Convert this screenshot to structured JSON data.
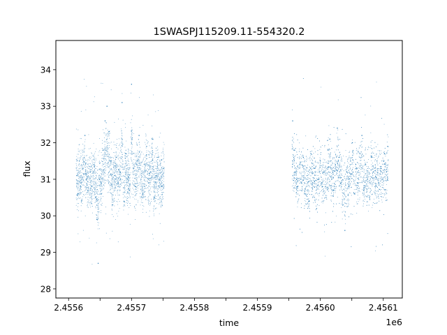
{
  "chart_data": {
    "type": "scatter",
    "title": "1SWASPJ115209.11-554320.2",
    "xlabel": "time",
    "ylabel": "flux",
    "x_offset_label": "1e6",
    "xlim": [
      2455579.8,
      2456130.2
    ],
    "ylim": [
      27.75,
      34.8
    ],
    "x_ticks": [
      2455600,
      2455650,
      2455700,
      2455750,
      2455800,
      2455850,
      2455900,
      2455950,
      2456000,
      2456050,
      2456100
    ],
    "x_tick_labels": [
      "2.4556",
      "",
      "2.4557",
      "",
      "2.4558",
      "",
      "2.4559",
      "",
      "2.4560",
      "",
      "2.4561"
    ],
    "y_ticks": [
      28,
      29,
      30,
      31,
      32,
      33,
      34
    ],
    "y_tick_labels": [
      "28",
      "29",
      "30",
      "31",
      "32",
      "33",
      "34"
    ],
    "grid": false,
    "marker_color": "#1f77b4",
    "segments": [
      {
        "x_start": 2455612,
        "x_end": 2455752,
        "points": [
          [
            2455613,
            31.1
          ],
          [
            2455615,
            30.6
          ],
          [
            2455617,
            31.5
          ],
          [
            2455620,
            30.9
          ],
          [
            2455623,
            31.3
          ],
          [
            2455626,
            32.2
          ],
          [
            2455628,
            31.0
          ],
          [
            2455631,
            30.7
          ],
          [
            2455634,
            31.2
          ],
          [
            2455637,
            30.8
          ],
          [
            2455640,
            31.4
          ],
          [
            2455643,
            30.5
          ],
          [
            2455645,
            29.9
          ],
          [
            2455647,
            28.7
          ],
          [
            2455649,
            31.0
          ],
          [
            2455652,
            30.6
          ],
          [
            2455655,
            31.8
          ],
          [
            2455658,
            32.6
          ],
          [
            2455661,
            33.0
          ],
          [
            2455664,
            32.3
          ],
          [
            2455667,
            31.5
          ],
          [
            2455670,
            30.3
          ],
          [
            2455673,
            31.1
          ],
          [
            2455676,
            31.6
          ],
          [
            2455679,
            30.9
          ],
          [
            2455682,
            31.2
          ],
          [
            2455685,
            33.1
          ],
          [
            2455688,
            30.4
          ],
          [
            2455691,
            31.7
          ],
          [
            2455694,
            31.0
          ],
          [
            2455697,
            30.7
          ],
          [
            2455700,
            33.6
          ],
          [
            2455703,
            31.3
          ],
          [
            2455706,
            30.8
          ],
          [
            2455709,
            31.5
          ],
          [
            2455712,
            32.2
          ],
          [
            2455715,
            31.0
          ],
          [
            2455718,
            30.6
          ],
          [
            2455721,
            31.4
          ],
          [
            2455724,
            31.9
          ],
          [
            2455727,
            30.9
          ],
          [
            2455730,
            31.2
          ],
          [
            2455733,
            32.1
          ],
          [
            2455736,
            30.5
          ],
          [
            2455739,
            31.1
          ],
          [
            2455742,
            31.6
          ],
          [
            2455745,
            31.0
          ],
          [
            2455748,
            30.8
          ],
          [
            2455751,
            31.3
          ]
        ]
      },
      {
        "x_start": 2455955,
        "x_end": 2456108,
        "points": [
          [
            2455956,
            32.6
          ],
          [
            2455958,
            31.8
          ],
          [
            2455961,
            31.2
          ],
          [
            2455964,
            30.8
          ],
          [
            2455967,
            31.4
          ],
          [
            2455970,
            30.9
          ],
          [
            2455973,
            31.6
          ],
          [
            2455976,
            30.6
          ],
          [
            2455979,
            31.1
          ],
          [
            2455982,
            30.4
          ],
          [
            2455985,
            31.7
          ],
          [
            2455988,
            30.9
          ],
          [
            2455991,
            31.3
          ],
          [
            2455994,
            30.2
          ],
          [
            2455997,
            31.0
          ],
          [
            2456000,
            31.5
          ],
          [
            2456003,
            30.8
          ],
          [
            2456006,
            31.2
          ],
          [
            2456009,
            30.5
          ],
          [
            2456012,
            31.8
          ],
          [
            2456015,
            32.1
          ],
          [
            2456018,
            31.0
          ],
          [
            2456021,
            30.7
          ],
          [
            2456024,
            31.4
          ],
          [
            2456027,
            32.4
          ],
          [
            2456030,
            31.6
          ],
          [
            2456033,
            30.9
          ],
          [
            2456036,
            30.3
          ],
          [
            2456039,
            29.6
          ],
          [
            2456042,
            31.2
          ],
          [
            2456045,
            30.8
          ],
          [
            2456048,
            31.5
          ],
          [
            2456051,
            32.0
          ],
          [
            2456054,
            30.6
          ],
          [
            2456057,
            31.3
          ],
          [
            2456060,
            30.9
          ],
          [
            2456063,
            31.7
          ],
          [
            2456066,
            32.2
          ],
          [
            2456069,
            30.7
          ],
          [
            2456072,
            31.4
          ],
          [
            2456075,
            31.0
          ],
          [
            2456078,
            30.5
          ],
          [
            2456081,
            31.6
          ],
          [
            2456084,
            31.2
          ],
          [
            2456087,
            30.8
          ],
          [
            2456090,
            31.5
          ],
          [
            2456093,
            30.9
          ],
          [
            2456096,
            31.3
          ],
          [
            2456099,
            31.0
          ],
          [
            2456102,
            31.7
          ],
          [
            2456105,
            31.2
          ],
          [
            2456107,
            31.9
          ]
        ]
      }
    ]
  }
}
